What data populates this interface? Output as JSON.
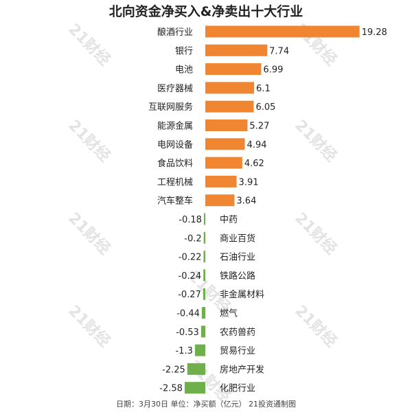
{
  "title": "北向资金净买入&净卖出十大行业",
  "footer": "日期：3月30日 单位：净买额（亿元） 21投资通制图",
  "watermark": "21财经",
  "colors": {
    "positive": "#F08532",
    "negative": "#6FB04C"
  },
  "chart_data": {
    "type": "bar",
    "orientation": "horizontal",
    "title": "北向资金净买入&净卖出十大行业",
    "categories": [
      "酿酒行业",
      "银行",
      "电池",
      "医疗器械",
      "互联网服务",
      "能源金属",
      "电网设备",
      "食品饮料",
      "工程机械",
      "汽车整车",
      "中药",
      "商业百货",
      "石油行业",
      "铁路公路",
      "非金属材料",
      "燃气",
      "农药兽药",
      "贸易行业",
      "房地产开发",
      "化肥行业"
    ],
    "values": [
      19.28,
      7.74,
      6.99,
      6.1,
      6.05,
      5.27,
      4.94,
      4.62,
      3.91,
      3.64,
      -0.18,
      -0.2,
      -0.22,
      -0.24,
      -0.27,
      -0.44,
      -0.53,
      -1.3,
      -2.25,
      -2.58
    ],
    "value_labels": [
      "19.28",
      "7.74",
      "6.99",
      "6.1",
      "6.05",
      "5.27",
      "4.94",
      "4.62",
      "3.91",
      "3.64",
      "-0.18",
      "-0.2",
      "-0.22",
      "-0.24",
      "-0.27",
      "-0.44",
      "-0.53",
      "-1.3",
      "-2.25",
      "-2.58"
    ],
    "xlim": [
      -2.58,
      19.28
    ],
    "grid": false,
    "legend": "none"
  }
}
